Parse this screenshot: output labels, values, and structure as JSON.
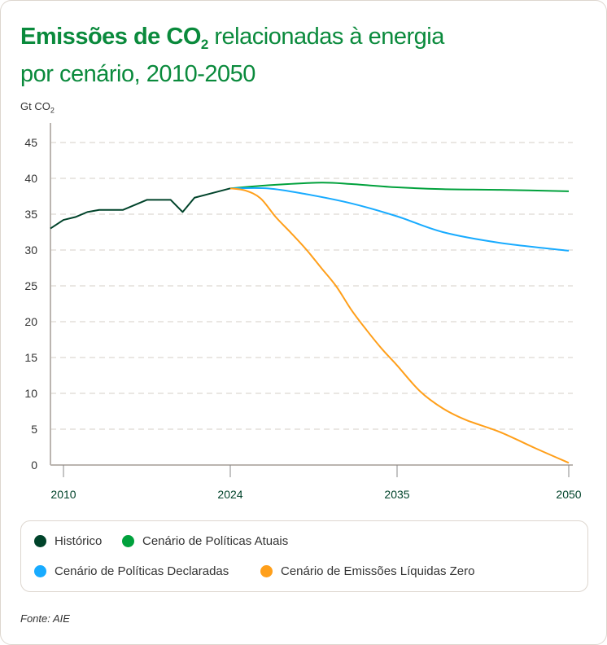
{
  "title": {
    "bold": "Emissões de CO",
    "bold_sub": "2",
    "rest_line1": " relacionadas à energia",
    "line2": "por cenário, 2010-2050"
  },
  "unit": {
    "text": "Gt CO",
    "sub": "2"
  },
  "source": "Fonte: AIE",
  "chart_data": {
    "type": "line",
    "title": "Emissões de CO2 relacionadas à energia por cenário, 2010-2050",
    "ylabel": "Gt CO2",
    "ylim": [
      0,
      45
    ],
    "yticks": [
      0,
      5,
      10,
      15,
      20,
      25,
      30,
      35,
      40,
      45
    ],
    "xticks": [
      2010,
      2024,
      2035,
      2050
    ],
    "grid": "horizontal dashed",
    "legend": "bottom",
    "series": [
      {
        "name": "Histórico",
        "color": "#00432a",
        "x": [
          2009,
          2010,
          2011,
          2012,
          2013,
          2015,
          2017,
          2019,
          2020,
          2021,
          2024
        ],
        "y": [
          33.0,
          34.2,
          34.6,
          35.3,
          35.6,
          35.6,
          37.0,
          37.0,
          35.3,
          37.3,
          38.6
        ]
      },
      {
        "name": "Cenário de Políticas Atuais",
        "color": "#00a13c",
        "x": [
          2024,
          2027,
          2030,
          2032,
          2035,
          2039,
          2044,
          2050
        ],
        "y": [
          38.6,
          39.1,
          39.4,
          39.2,
          38.75,
          38.5,
          38.4,
          38.2
        ]
      },
      {
        "name": "Cenário de Políticas Declaradas",
        "color": "#18abff",
        "x": [
          2024,
          2026.5,
          2029,
          2032,
          2035,
          2039,
          2044,
          2050
        ],
        "y": [
          38.6,
          38.6,
          37.8,
          36.5,
          34.7,
          32.5,
          31.0,
          29.9
        ]
      },
      {
        "name": "Cenário de Emissões Líquidas Zero",
        "color": "#ff9f1a",
        "x": [
          2024,
          2025,
          2026,
          2027,
          2028,
          2029,
          2030,
          2031,
          2032,
          2033,
          2034,
          2035,
          2037,
          2039,
          2041,
          2044,
          2047,
          2050
        ],
        "y": [
          38.6,
          38.3,
          37.2,
          34.6,
          32.4,
          30.1,
          27.5,
          24.9,
          21.6,
          18.8,
          16.2,
          13.9,
          10.3,
          7.9,
          6.3,
          4.6,
          2.4,
          0.3
        ]
      }
    ]
  }
}
